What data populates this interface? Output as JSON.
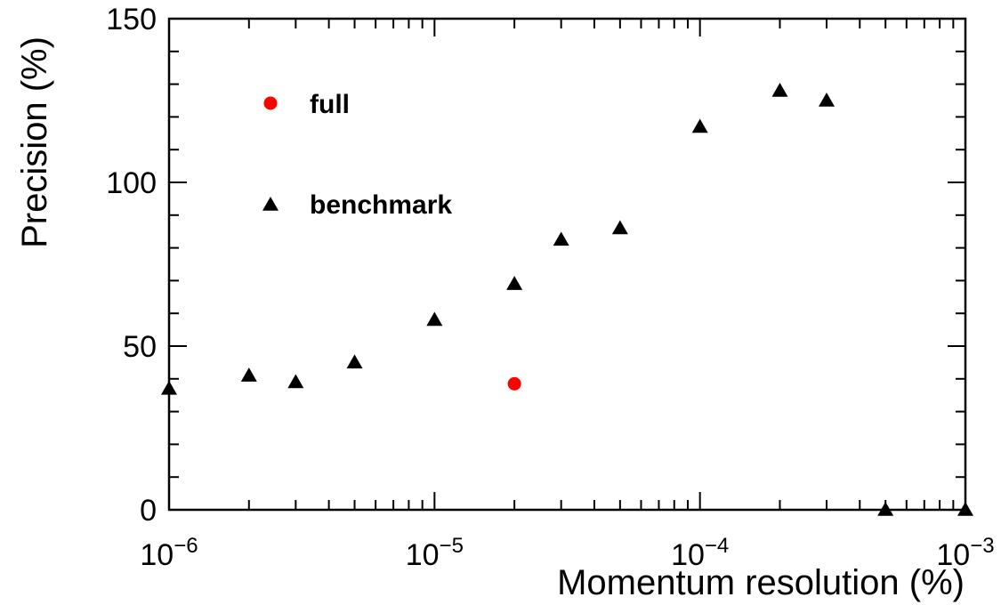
{
  "chart_data": {
    "type": "scatter",
    "title": "",
    "xlabel": "Momentum resolution (%)",
    "ylabel": "Precision (%)",
    "x_scale": "log",
    "xlim": [
      1e-06,
      0.001
    ],
    "ylim": [
      0,
      150
    ],
    "grid": false,
    "legend_position": "top-left",
    "x_ticks": [
      {
        "value": 1e-06,
        "base": "10",
        "exp": "−6"
      },
      {
        "value": 1e-05,
        "base": "10",
        "exp": "−5"
      },
      {
        "value": 0.0001,
        "base": "10",
        "exp": "−4"
      },
      {
        "value": 0.001,
        "base": "10",
        "exp": "−3"
      }
    ],
    "y_ticks": [
      {
        "value": 0,
        "label": "0"
      },
      {
        "value": 50,
        "label": "50"
      },
      {
        "value": 100,
        "label": "100"
      },
      {
        "value": 150,
        "label": "150"
      }
    ],
    "series": [
      {
        "name": "full",
        "marker": "circle",
        "color": "#ff0000",
        "points": [
          {
            "x": 2e-05,
            "y": 38.5
          }
        ]
      },
      {
        "name": "benchmark",
        "marker": "triangle",
        "color": "#000000",
        "points": [
          {
            "x": 1e-06,
            "y": 37
          },
          {
            "x": 2e-06,
            "y": 41
          },
          {
            "x": 3e-06,
            "y": 39
          },
          {
            "x": 5e-06,
            "y": 45
          },
          {
            "x": 1e-05,
            "y": 58
          },
          {
            "x": 2e-05,
            "y": 69
          },
          {
            "x": 3e-05,
            "y": 82.5
          },
          {
            "x": 5e-05,
            "y": 86
          },
          {
            "x": 0.0001,
            "y": 117
          },
          {
            "x": 0.0002,
            "y": 128
          },
          {
            "x": 0.0003,
            "y": 125
          },
          {
            "x": 0.0005,
            "y": 0
          },
          {
            "x": 0.001,
            "y": 0
          }
        ]
      }
    ]
  }
}
